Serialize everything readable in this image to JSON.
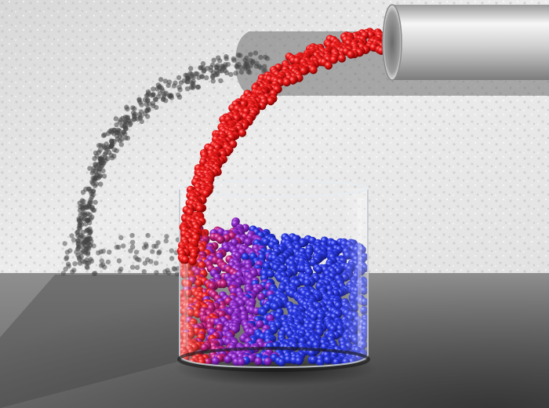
{
  "scene": {
    "subject": "particles-pouring-into-beaker",
    "colors": {
      "wall": "#e6e6e6",
      "wall_shade": "#c9c9c9",
      "floor_light": "#9a9a9a",
      "floor_dark": "#3c3c3c",
      "pipe_light": "#f4f4f4",
      "pipe_dark": "#8d8d8d",
      "particle_red": "#e0141a",
      "particle_purple": "#8a1ec8",
      "particle_blue": "#1f28e0",
      "shadow": "#4a4a4a",
      "glass_rim": "#d9dde2"
    },
    "icons": [
      "pipe",
      "glass-beaker",
      "particle-stream",
      "particle-pile",
      "shadow"
    ]
  }
}
